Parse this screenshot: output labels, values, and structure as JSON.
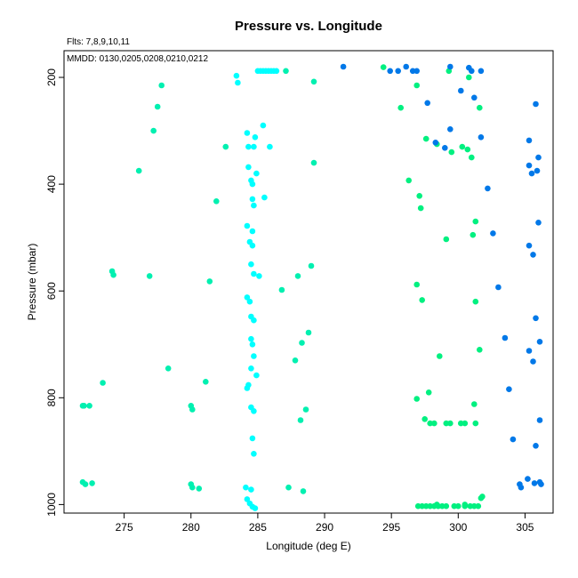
{
  "chart_data": {
    "type": "scatter",
    "title": "Pressure vs. Longitude",
    "annotations": [
      "Flts: 7,8,9,10,11",
      "MMDD: 0130,0205,0208,0210,0212"
    ],
    "xlabel": "Longitude (deg E)",
    "ylabel": "Pressure (mbar)",
    "xlim": [
      270.5,
      307.1
    ],
    "ylim": [
      1016,
      150
    ],
    "y_inverted": true,
    "grid": false,
    "x_ticks": [
      "275",
      "280",
      "285",
      "290",
      "295",
      "300",
      "305"
    ],
    "y_ticks": [
      "200",
      "400",
      "600",
      "800",
      "1000"
    ],
    "series": [
      {
        "color": "#00ffff",
        "points": [
          [
            283.4,
            197
          ],
          [
            283.5,
            210
          ],
          [
            285.0,
            188
          ],
          [
            285.2,
            188
          ],
          [
            285.4,
            188
          ],
          [
            285.6,
            188
          ],
          [
            285.8,
            188
          ],
          [
            286.0,
            188
          ],
          [
            286.2,
            188
          ],
          [
            286.4,
            188
          ],
          [
            285.4,
            290
          ],
          [
            284.2,
            304
          ],
          [
            284.8,
            312
          ],
          [
            284.3,
            330
          ],
          [
            284.7,
            330
          ],
          [
            285.9,
            330
          ],
          [
            284.3,
            368
          ],
          [
            284.9,
            380
          ],
          [
            284.5,
            393
          ],
          [
            284.6,
            400
          ],
          [
            285.5,
            425
          ],
          [
            284.6,
            428
          ],
          [
            284.7,
            440
          ],
          [
            284.2,
            478
          ],
          [
            284.6,
            488
          ],
          [
            284.4,
            508
          ],
          [
            284.6,
            515
          ],
          [
            284.5,
            550
          ],
          [
            284.7,
            568
          ],
          [
            285.1,
            572
          ],
          [
            284.2,
            612
          ],
          [
            284.4,
            620
          ],
          [
            284.5,
            648
          ],
          [
            284.7,
            655
          ],
          [
            284.5,
            690
          ],
          [
            284.6,
            700
          ],
          [
            284.7,
            722
          ],
          [
            284.5,
            745
          ],
          [
            284.9,
            758
          ],
          [
            284.3,
            776
          ],
          [
            284.2,
            782
          ],
          [
            284.5,
            818
          ],
          [
            284.7,
            825
          ],
          [
            284.6,
            876
          ],
          [
            284.7,
            905
          ],
          [
            284.1,
            968
          ],
          [
            284.5,
            972
          ],
          [
            284.2,
            990
          ],
          [
            284.4,
            998
          ],
          [
            284.6,
            1004
          ],
          [
            284.8,
            1007
          ]
        ]
      },
      {
        "color": "#00f0b0",
        "points": [
          [
            287.1,
            188
          ],
          [
            289.2,
            208
          ],
          [
            277.8,
            215
          ],
          [
            277.5,
            255
          ],
          [
            277.2,
            300
          ],
          [
            282.6,
            330
          ],
          [
            276.1,
            375
          ],
          [
            289.2,
            360
          ],
          [
            281.9,
            432
          ],
          [
            289.0,
            553
          ],
          [
            288.0,
            572
          ],
          [
            276.9,
            572
          ],
          [
            274.1,
            563
          ],
          [
            274.2,
            570
          ],
          [
            281.4,
            582
          ],
          [
            286.8,
            598
          ],
          [
            288.8,
            678
          ],
          [
            288.3,
            697
          ],
          [
            287.8,
            730
          ],
          [
            278.3,
            745
          ],
          [
            281.1,
            770
          ],
          [
            273.4,
            772
          ],
          [
            271.9,
            815
          ],
          [
            272.0,
            815
          ],
          [
            272.4,
            815
          ],
          [
            280.0,
            815
          ],
          [
            280.1,
            822
          ],
          [
            288.6,
            822
          ],
          [
            288.2,
            842
          ],
          [
            271.9,
            958
          ],
          [
            272.1,
            962
          ],
          [
            272.6,
            960
          ],
          [
            280.0,
            962
          ],
          [
            280.1,
            968
          ],
          [
            280.6,
            970
          ],
          [
            287.3,
            968
          ],
          [
            288.4,
            975
          ]
        ]
      },
      {
        "color": "#00f080",
        "points": [
          [
            294.4,
            181
          ],
          [
            299.3,
            188
          ],
          [
            296.9,
            215
          ],
          [
            295.7,
            257
          ],
          [
            300.8,
            200
          ],
          [
            301.6,
            257
          ],
          [
            297.6,
            315
          ],
          [
            298.4,
            325
          ],
          [
            299.5,
            340
          ],
          [
            300.3,
            330
          ],
          [
            300.7,
            335
          ],
          [
            301.0,
            350
          ],
          [
            296.3,
            393
          ],
          [
            297.1,
            422
          ],
          [
            297.2,
            445
          ],
          [
            301.3,
            470
          ],
          [
            301.1,
            495
          ],
          [
            299.1,
            503
          ],
          [
            296.9,
            588
          ],
          [
            297.3,
            617
          ],
          [
            301.3,
            620
          ],
          [
            301.6,
            710
          ],
          [
            298.6,
            722
          ],
          [
            297.8,
            790
          ],
          [
            296.9,
            802
          ],
          [
            301.2,
            812
          ],
          [
            297.5,
            840
          ],
          [
            297.9,
            848
          ],
          [
            298.2,
            848
          ],
          [
            299.1,
            848
          ],
          [
            299.4,
            848
          ],
          [
            300.2,
            848
          ],
          [
            300.5,
            848
          ],
          [
            301.3,
            848
          ],
          [
            297.0,
            1003
          ],
          [
            297.3,
            1003
          ],
          [
            297.6,
            1003
          ],
          [
            297.9,
            1003
          ],
          [
            298.2,
            1003
          ],
          [
            298.5,
            1003
          ],
          [
            298.8,
            1003
          ],
          [
            299.1,
            1003
          ],
          [
            299.7,
            1003
          ],
          [
            300.0,
            1003
          ],
          [
            300.5,
            1003
          ],
          [
            300.9,
            1003
          ],
          [
            301.2,
            1003
          ],
          [
            301.5,
            1003
          ],
          [
            301.7,
            988
          ],
          [
            301.8,
            985
          ],
          [
            300.5,
            1000
          ],
          [
            298.4,
            1000
          ]
        ]
      },
      {
        "color": "#0078e8",
        "points": [
          [
            291.4,
            180
          ],
          [
            294.9,
            188
          ],
          [
            295.5,
            188
          ],
          [
            296.1,
            180
          ],
          [
            296.6,
            188
          ],
          [
            296.9,
            188
          ],
          [
            299.4,
            180
          ],
          [
            300.8,
            182
          ],
          [
            301.0,
            188
          ],
          [
            301.7,
            188
          ],
          [
            300.2,
            225
          ],
          [
            301.2,
            238
          ],
          [
            297.7,
            248
          ],
          [
            305.8,
            250
          ],
          [
            299.4,
            297
          ],
          [
            301.7,
            312
          ],
          [
            298.3,
            322
          ],
          [
            299.0,
            332
          ],
          [
            305.3,
            318
          ],
          [
            306.0,
            350
          ],
          [
            305.3,
            365
          ],
          [
            305.9,
            375
          ],
          [
            305.5,
            380
          ],
          [
            302.2,
            408
          ],
          [
            306.0,
            472
          ],
          [
            302.6,
            492
          ],
          [
            305.3,
            515
          ],
          [
            305.6,
            532
          ],
          [
            303.0,
            593
          ],
          [
            305.8,
            651
          ],
          [
            306.1,
            695
          ],
          [
            305.3,
            712
          ],
          [
            305.6,
            732
          ],
          [
            303.5,
            688
          ],
          [
            303.8,
            784
          ],
          [
            306.1,
            842
          ],
          [
            304.1,
            878
          ],
          [
            305.8,
            890
          ],
          [
            305.2,
            952
          ],
          [
            304.6,
            962
          ],
          [
            304.7,
            968
          ],
          [
            305.7,
            960
          ],
          [
            306.1,
            958
          ],
          [
            306.2,
            962
          ]
        ]
      }
    ]
  }
}
